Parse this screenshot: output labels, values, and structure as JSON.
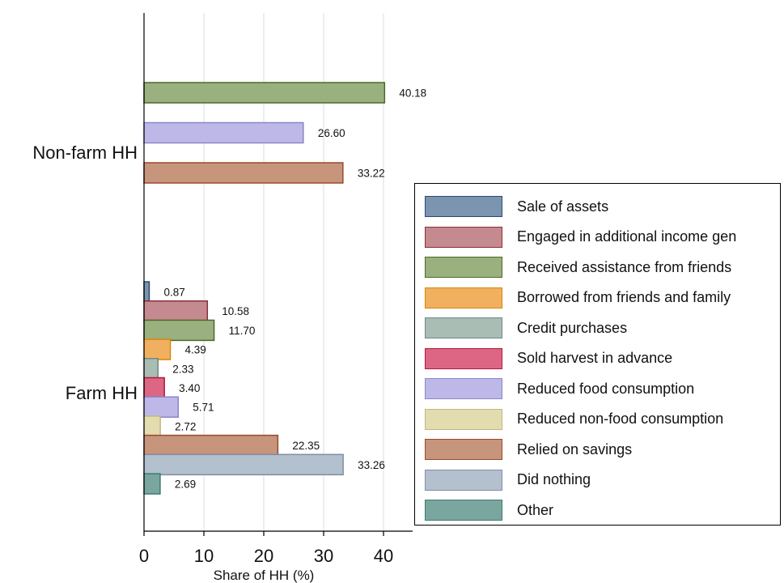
{
  "chart_data": {
    "type": "bar",
    "orientation": "horizontal",
    "title": "",
    "xlabel": "Share of HH (%)",
    "ylabel": "",
    "xlim": [
      0,
      45
    ],
    "xticks": [
      "0",
      "10",
      "20",
      "30",
      "40"
    ],
    "grid": true,
    "legend_position": "right",
    "groups": [
      "Non-farm HH",
      "Farm HH"
    ],
    "series": [
      {
        "name": "Sale of assets",
        "fill": "#7b95b0",
        "stroke": "#2c4a6e",
        "values": [
          null,
          0.87
        ]
      },
      {
        "name": "Engaged in additional income gen",
        "fill": "#c58a8f",
        "stroke": "#8b2e3b",
        "values": [
          null,
          10.58
        ]
      },
      {
        "name": "Received assistance from friends",
        "fill": "#9ab07e",
        "stroke": "#4a6b2a",
        "values": [
          40.18,
          11.7
        ]
      },
      {
        "name": "Borrowed from friends and family",
        "fill": "#f0b060",
        "stroke": "#d8860f",
        "values": [
          null,
          4.39
        ]
      },
      {
        "name": "Credit purchases",
        "fill": "#a9bdb5",
        "stroke": "#6d8a80",
        "values": [
          null,
          2.33
        ]
      },
      {
        "name": "Sold harvest in advance",
        "fill": "#dc6683",
        "stroke": "#b01840",
        "values": [
          null,
          3.4
        ]
      },
      {
        "name": "Reduced food consumption",
        "fill": "#bdb8e8",
        "stroke": "#8c86c8",
        "values": [
          26.6,
          5.71
        ]
      },
      {
        "name": "Reduced non-food consumption",
        "fill": "#e3dcb0",
        "stroke": "#c2b680",
        "values": [
          null,
          2.72
        ]
      },
      {
        "name": "Relied on savings",
        "fill": "#c6957c",
        "stroke": "#9a4a2c",
        "values": [
          33.22,
          22.35
        ]
      },
      {
        "name": "Did nothing",
        "fill": "#b3c0cd",
        "stroke": "#7d8fa2",
        "values": [
          null,
          33.26
        ]
      },
      {
        "name": "Other",
        "fill": "#7aa6a0",
        "stroke": "#3e7a72",
        "values": [
          null,
          2.69
        ]
      }
    ],
    "data_labels": {
      "Non-farm HH": [
        "40.18",
        "26.60",
        "33.22"
      ],
      "Farm HH": [
        "0.87",
        "10.58",
        "11.70",
        "4.39",
        "2.33",
        "3.40",
        "5.71",
        "2.72",
        "22.35",
        "33.26",
        "2.69"
      ]
    }
  }
}
